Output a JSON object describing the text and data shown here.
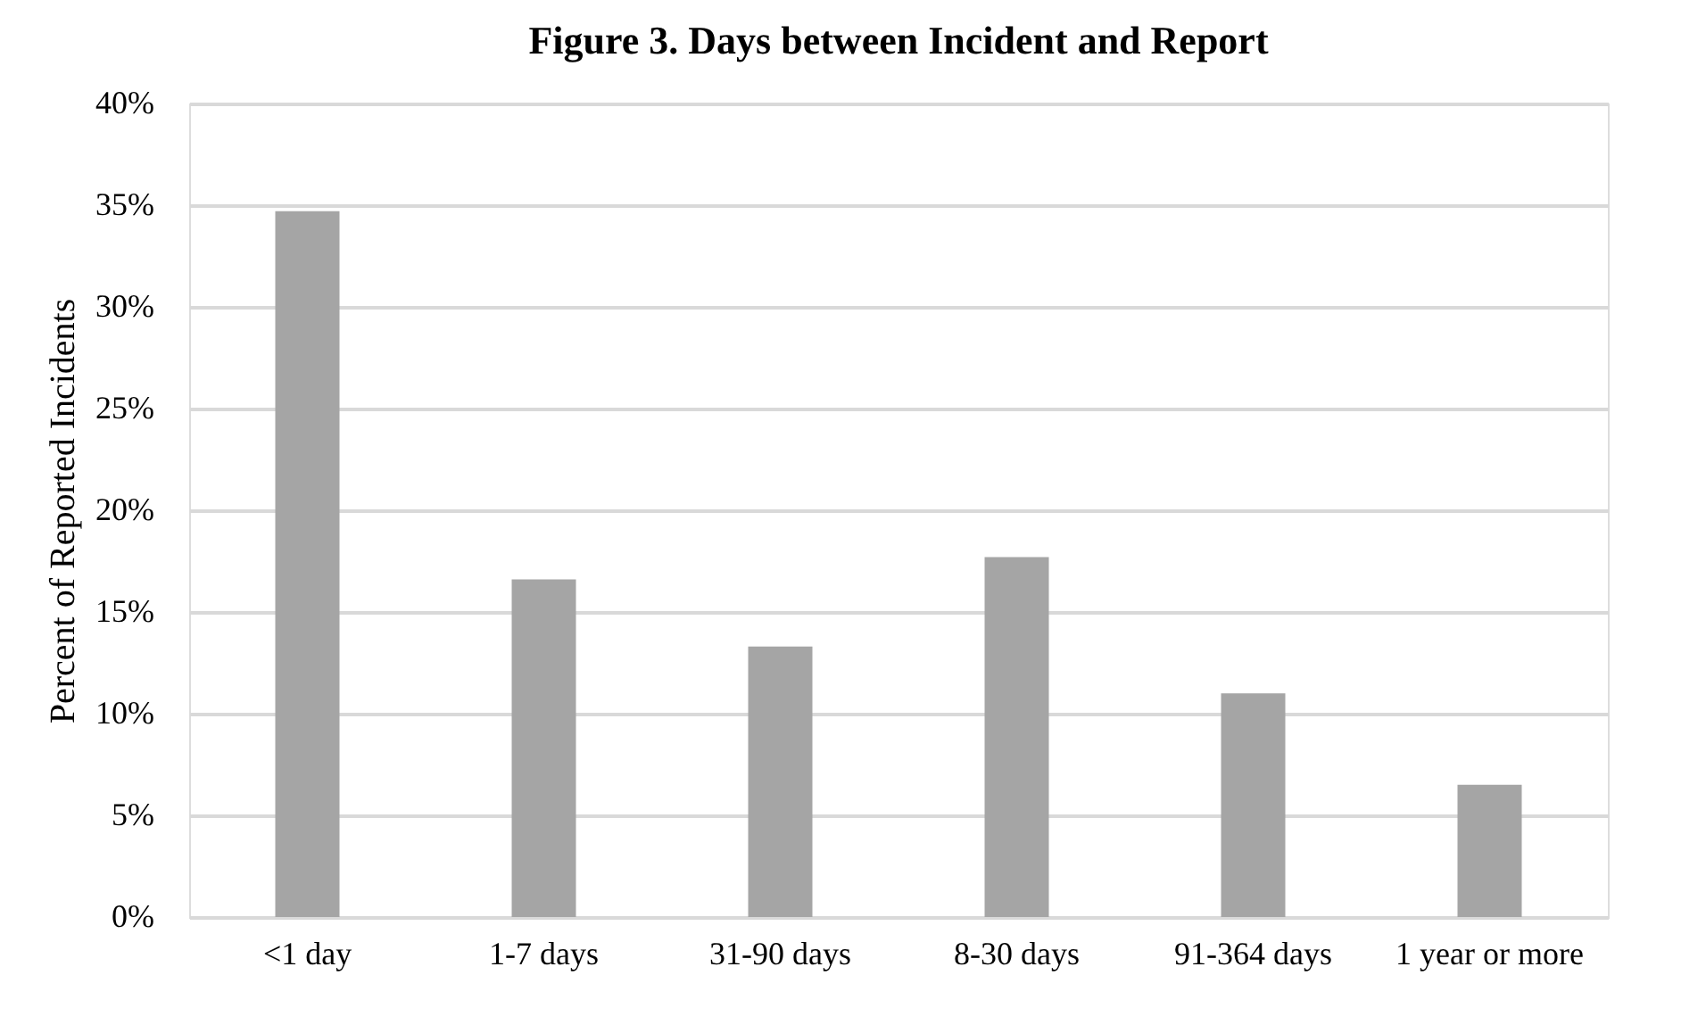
{
  "chart_data": {
    "type": "bar",
    "title": "Figure 3. Days between Incident and Report",
    "ylabel": "Percent of Reported Incidents",
    "categories": [
      "<1 day",
      "1-7 days",
      "31-90 days",
      "8-30 days",
      "91-364 days",
      "1 year or more"
    ],
    "values": [
      34.7,
      16.6,
      13.3,
      17.7,
      11.0,
      6.5
    ],
    "color": "#a5a5a5",
    "ylim": [
      0,
      40
    ],
    "yticks": [
      {
        "value": 0,
        "label": "0%"
      },
      {
        "value": 5,
        "label": "5%"
      },
      {
        "value": 10,
        "label": "10%"
      },
      {
        "value": 15,
        "label": "15%"
      },
      {
        "value": 20,
        "label": "20%"
      },
      {
        "value": 25,
        "label": "25%"
      },
      {
        "value": 30,
        "label": "30%"
      },
      {
        "value": 35,
        "label": "35%"
      },
      {
        "value": 40,
        "label": "40%"
      }
    ],
    "grid": "y"
  }
}
